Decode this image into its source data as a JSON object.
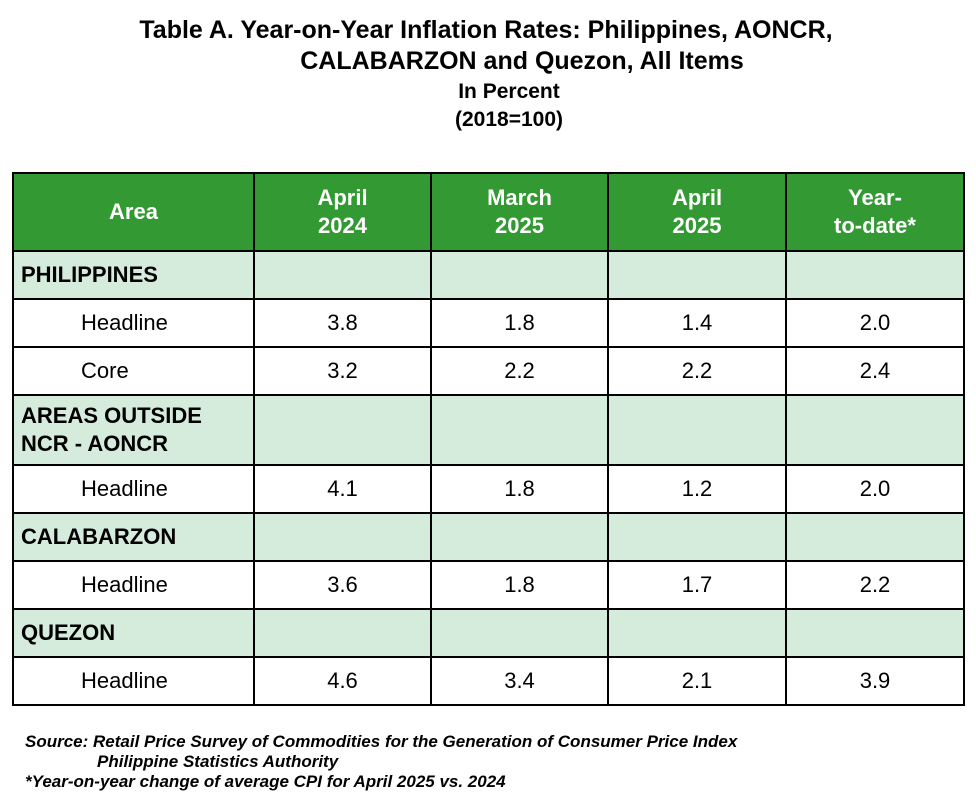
{
  "title": {
    "line1": "Table A. Year-on-Year Inflation Rates: Philippines, AONCR,",
    "line2": "CALABARZON and Quezon, All Items",
    "line3": "In Percent",
    "line4": "(2018=100)"
  },
  "columns": {
    "area": "Area",
    "apr2024": [
      "April",
      "2024"
    ],
    "mar2025": [
      "March",
      "2025"
    ],
    "apr2025": [
      "April",
      "2025"
    ],
    "ytd": [
      "Year-",
      "to-date*"
    ]
  },
  "sections": [
    {
      "name": "PHILIPPINES",
      "rows": [
        {
          "label": "Headline",
          "values": [
            "3.8",
            "1.8",
            "1.4",
            "2.0"
          ]
        },
        {
          "label": "Core",
          "values": [
            "3.2",
            "2.2",
            "2.2",
            "2.4"
          ]
        }
      ]
    },
    {
      "name_lines": [
        "AREAS OUTSIDE",
        "NCR - AONCR"
      ],
      "rows": [
        {
          "label": "Headline",
          "values": [
            "4.1",
            "1.8",
            "1.2",
            "2.0"
          ]
        }
      ]
    },
    {
      "name": "CALABARZON",
      "rows": [
        {
          "label": "Headline",
          "values": [
            "3.6",
            "1.8",
            "1.7",
            "2.2"
          ]
        }
      ]
    },
    {
      "name": "QUEZON",
      "rows": [
        {
          "label": "Headline",
          "values": [
            "4.6",
            "3.4",
            "2.1",
            "3.9"
          ]
        }
      ]
    }
  ],
  "footnotes": {
    "source_line1": "Source: Retail Price Survey of Commodities for the Generation of Consumer Price Index",
    "source_line2": "Philippine Statistics Authority",
    "note": "*Year-on-year change of average CPI for April 2025 vs. 2024"
  }
}
